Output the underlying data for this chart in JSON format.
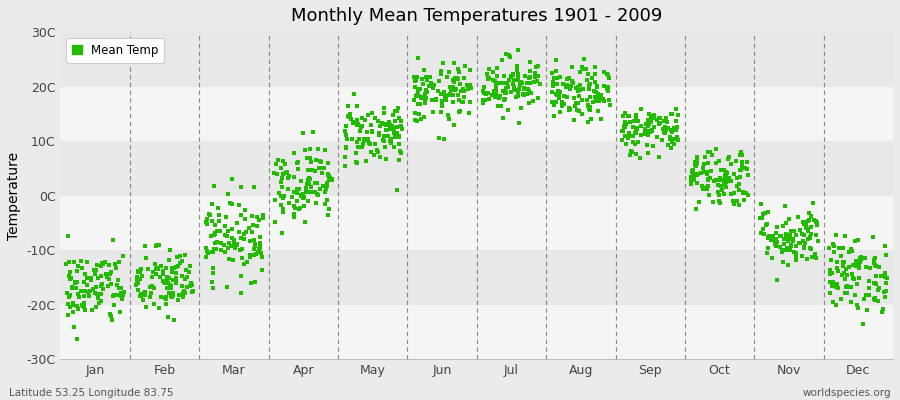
{
  "title": "Monthly Mean Temperatures 1901 - 2009",
  "ylabel": "Temperature",
  "ylim": [
    -30,
    30
  ],
  "yticks": [
    -30,
    -20,
    -10,
    0,
    10,
    20,
    30
  ],
  "ytick_labels": [
    "-30C",
    "-20C",
    "-10C",
    "0C",
    "10C",
    "20C",
    "30C"
  ],
  "months": [
    "Jan",
    "Feb",
    "Mar",
    "Apr",
    "May",
    "Jun",
    "Jul",
    "Aug",
    "Sep",
    "Oct",
    "Nov",
    "Dec"
  ],
  "legend_label": "Mean Temp",
  "bottom_left": "Latitude 53.25 Longitude 83.75",
  "bottom_right": "worldspecies.org",
  "marker_color": "#22BB00",
  "marker": "s",
  "marker_size": 2.5,
  "bg_color": "#EBEBEB",
  "band_colors": [
    "#F5F5F5",
    "#E8E8E8"
  ],
  "monthly_mean_temps": [
    -17.0,
    -16.0,
    -7.5,
    2.5,
    11.5,
    18.5,
    20.5,
    18.5,
    12.0,
    3.5,
    -7.5,
    -14.5
  ],
  "monthly_std_temps": [
    3.5,
    3.2,
    3.8,
    3.5,
    3.0,
    2.8,
    2.5,
    2.5,
    2.2,
    2.8,
    2.8,
    3.5
  ],
  "n_years": 109,
  "seed": 42,
  "figsize": [
    9.0,
    4.0
  ],
  "dpi": 100
}
